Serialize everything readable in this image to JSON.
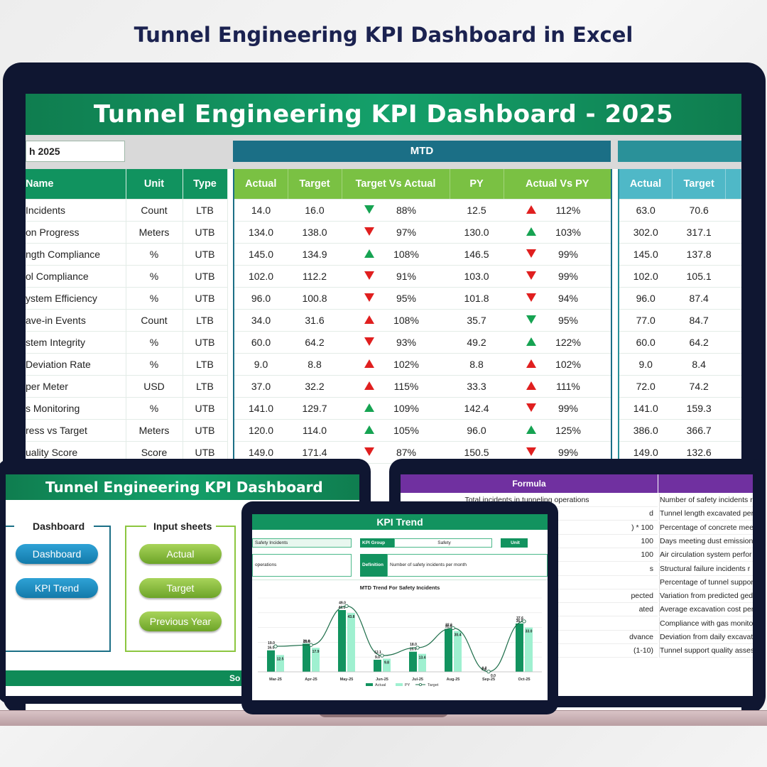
{
  "page_title": "Tunnel Engineering KPI Dashboard in Excel",
  "dashboard": {
    "banner": "Tunnel Engineering KPI Dashboard - 2025",
    "month_value": "h 2025",
    "mtd_label": "MTD",
    "left_headers": [
      "Name",
      "Unit",
      "Type"
    ],
    "mtd_headers": [
      "Actual",
      "Target",
      "Target Vs Actual",
      "PY",
      "Actual Vs PY"
    ],
    "ytd_headers": [
      "Actual",
      "Target"
    ],
    "rows": [
      {
        "name": "Incidents",
        "unit": "Count",
        "type": "LTB",
        "a": "14.0",
        "t": "16.0",
        "tva_dir": "down-green",
        "tva": "88%",
        "py": "12.5",
        "avp_dir": "up-red",
        "avp": "112%",
        "ya": "63.0",
        "yt": "70.6"
      },
      {
        "name": "on Progress",
        "unit": "Meters",
        "type": "UTB",
        "a": "134.0",
        "t": "138.0",
        "tva_dir": "down-red",
        "tva": "97%",
        "py": "130.0",
        "avp_dir": "up-green",
        "avp": "103%",
        "ya": "302.0",
        "yt": "317.1"
      },
      {
        "name": "ngth Compliance",
        "unit": "%",
        "type": "UTB",
        "a": "145.0",
        "t": "134.9",
        "tva_dir": "up-green",
        "tva": "108%",
        "py": "146.5",
        "avp_dir": "down-red",
        "avp": "99%",
        "ya": "145.0",
        "yt": "137.8"
      },
      {
        "name": "ol Compliance",
        "unit": "%",
        "type": "UTB",
        "a": "102.0",
        "t": "112.2",
        "tva_dir": "down-red",
        "tva": "91%",
        "py": "103.0",
        "avp_dir": "down-red",
        "avp": "99%",
        "ya": "102.0",
        "yt": "105.1"
      },
      {
        "name": "ystem Efficiency",
        "unit": "%",
        "type": "UTB",
        "a": "96.0",
        "t": "100.8",
        "tva_dir": "down-red",
        "tva": "95%",
        "py": "101.8",
        "avp_dir": "down-red",
        "avp": "94%",
        "ya": "96.0",
        "yt": "87.4"
      },
      {
        "name": "ave-in Events",
        "unit": "Count",
        "type": "LTB",
        "a": "34.0",
        "t": "31.6",
        "tva_dir": "up-red",
        "tva": "108%",
        "py": "35.7",
        "avp_dir": "down-green",
        "avp": "95%",
        "ya": "77.0",
        "yt": "84.7"
      },
      {
        "name": "stem Integrity",
        "unit": "%",
        "type": "UTB",
        "a": "60.0",
        "t": "64.2",
        "tva_dir": "down-red",
        "tva": "93%",
        "py": "49.2",
        "avp_dir": "up-green",
        "avp": "122%",
        "ya": "60.0",
        "yt": "64.2"
      },
      {
        "name": "Deviation Rate",
        "unit": "%",
        "type": "LTB",
        "a": "9.0",
        "t": "8.8",
        "tva_dir": "up-red",
        "tva": "102%",
        "py": "8.8",
        "avp_dir": "up-red",
        "avp": "102%",
        "ya": "9.0",
        "yt": "8.4"
      },
      {
        "name": "per Meter",
        "unit": "USD",
        "type": "LTB",
        "a": "37.0",
        "t": "32.2",
        "tva_dir": "up-red",
        "tva": "115%",
        "py": "33.3",
        "avp_dir": "up-red",
        "avp": "111%",
        "ya": "72.0",
        "yt": "74.2"
      },
      {
        "name": "s Monitoring",
        "unit": "%",
        "type": "UTB",
        "a": "141.0",
        "t": "129.7",
        "tva_dir": "up-green",
        "tva": "109%",
        "py": "142.4",
        "avp_dir": "down-red",
        "avp": "99%",
        "ya": "141.0",
        "yt": "159.3"
      },
      {
        "name": "ress vs Target",
        "unit": "Meters",
        "type": "UTB",
        "a": "120.0",
        "t": "114.0",
        "tva_dir": "up-green",
        "tva": "105%",
        "py": "96.0",
        "avp_dir": "up-green",
        "avp": "125%",
        "ya": "386.0",
        "yt": "366.7"
      },
      {
        "name": "uality Score",
        "unit": "Score",
        "type": "UTB",
        "a": "149.0",
        "t": "171.4",
        "tva_dir": "down-red",
        "tva": "87%",
        "py": "150.5",
        "avp_dir": "down-red",
        "avp": "99%",
        "ya": "149.0",
        "yt": "132.6"
      }
    ]
  },
  "nav_tablet": {
    "banner": "Tunnel Engineering KPI Dashboard",
    "group_dashboard": "Dashboard",
    "group_input": "Input sheets",
    "btn_dashboard": "Dashboard",
    "btn_kpi_trend": "KPI Trend",
    "btn_actual": "Actual",
    "btn_target": "Target",
    "btn_previous_year": "Previous Year",
    "footer": "So"
  },
  "formula_tablet": {
    "header_formula": "Formula",
    "formulas": [
      "Total incidents in tunneling operations",
      "d",
      ") * 100",
      "100",
      "100",
      "s",
      "",
      "pected",
      "ated",
      "",
      "dvance",
      "(1-10)"
    ],
    "definitions": [
      "Number of safety incidents r",
      "Tunnel length excavated per",
      "Percentage of concrete mee",
      "Days meeting dust emission",
      "Air circulation system perfor",
      "Structural failure incidents r",
      "Percentage of tunnel suppor",
      "Variation from predicted ged",
      "Average excavation cost per",
      "Compliance with gas monito",
      "Deviation from daily excavat",
      "Tunnel support quality asses"
    ]
  },
  "kpi_trend": {
    "banner": "KPI Trend",
    "kpi_name": "Safety Incidents",
    "kpi_group_label": "KPI Group",
    "kpi_group": "Safety",
    "unit_label": "Unit",
    "formula_snippet": "operations",
    "definition_label": "Definition",
    "definition": "Number of safety incidents per month",
    "chart_title": "MTD Trend For Safety Incidents",
    "legend": [
      "Actual",
      "PY",
      "Target"
    ]
  },
  "chart_data": {
    "type": "bar",
    "title": "MTD Trend For Safety Incidents",
    "categories": [
      "Mar-25",
      "Apr-25",
      "May-25",
      "Jun-25",
      "Jul-25",
      "Aug-25",
      "Sep-25",
      "Oct-25"
    ],
    "series": [
      {
        "name": "Actual",
        "values": [
          16.0,
          21.0,
          46.0,
          9.0,
          15.0,
          32.0,
          0.0,
          36.0
        ]
      },
      {
        "name": "PY",
        "values": [
          12.5,
          17.9,
          43.8,
          9.8,
          13.4,
          30.4,
          0.0,
          33.0
        ]
      },
      {
        "name": "Target",
        "values": [
          19.0,
          20.0,
          49.0,
          12.1,
          18.0,
          32.6,
          0.2,
          37.6
        ]
      }
    ],
    "ylim": [
      0,
      55
    ],
    "colors": {
      "Actual": "#12935f",
      "PY": "#9ff0d0",
      "Target": "#1e6e4a"
    }
  }
}
